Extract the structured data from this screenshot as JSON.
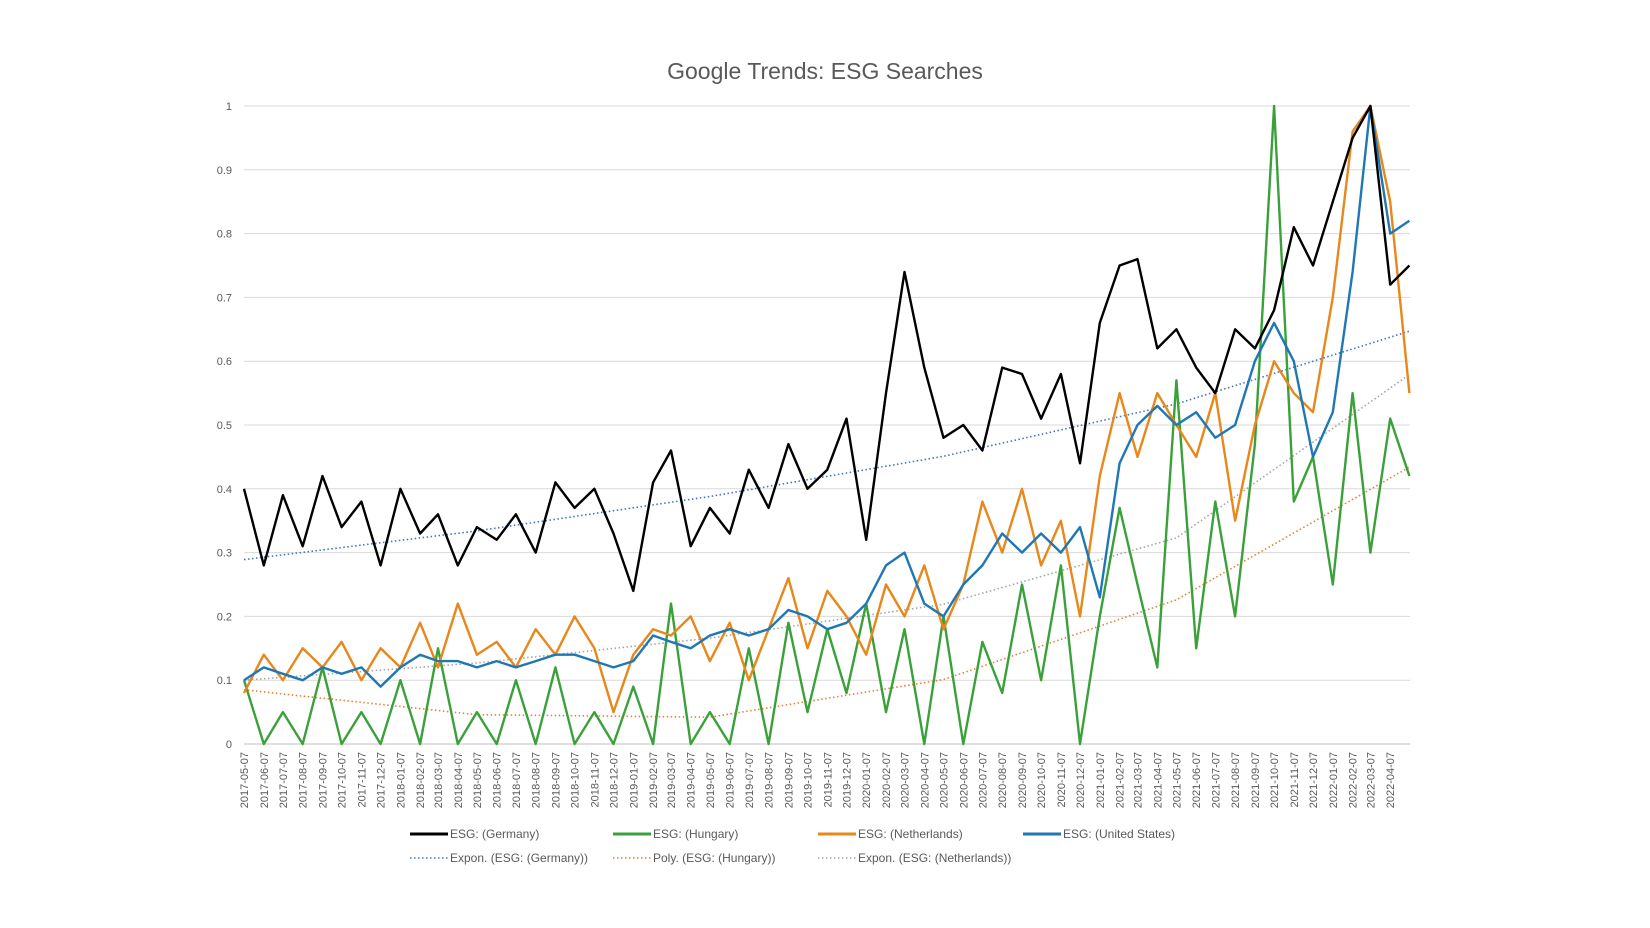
{
  "chart_data": {
    "type": "line",
    "title": "Google Trends: ESG Searches",
    "xlabel": "",
    "ylabel": "",
    "ylim": [
      0,
      1
    ],
    "yticks": [
      "0",
      "0.1",
      "0.2",
      "0.3",
      "0.4",
      "0.5",
      "0.6",
      "0.7",
      "0.8",
      "0.9",
      "1"
    ],
    "grid": true,
    "legend_position": "bottom",
    "x_start": "2017-05-07",
    "x_end": "2022-05-08",
    "x_tick_labels": [
      "2017-05-07",
      "2017-06-07",
      "2017-07-07",
      "2017-08-07",
      "2017-09-07",
      "2017-10-07",
      "2017-11-07",
      "2017-12-07",
      "2018-01-07",
      "2018-02-07",
      "2018-03-07",
      "2018-04-07",
      "2018-05-07",
      "2018-06-07",
      "2018-07-07",
      "2018-08-07",
      "2018-09-07",
      "2018-10-07",
      "2018-11-07",
      "2018-12-07",
      "2019-01-07",
      "2019-02-07",
      "2019-03-07",
      "2019-04-07",
      "2019-05-07",
      "2019-06-07",
      "2019-07-07",
      "2019-08-07",
      "2019-09-07",
      "2019-10-07",
      "2019-11-07",
      "2019-12-07",
      "2020-01-07",
      "2020-02-07",
      "2020-03-07",
      "2020-04-07",
      "2020-05-07",
      "2020-06-07",
      "2020-07-07",
      "2020-08-07",
      "2020-09-07",
      "2020-10-07",
      "2020-11-07",
      "2020-12-07",
      "2021-01-07",
      "2021-02-07",
      "2021-03-07",
      "2021-04-07",
      "2021-05-07",
      "2021-06-07",
      "2021-07-07",
      "2021-08-07",
      "2021-09-07",
      "2021-10-07",
      "2021-11-07",
      "2021-12-07",
      "2022-01-07",
      "2022-02-07",
      "2022-03-07",
      "2022-04-07"
    ],
    "series": [
      {
        "name": "ESG: (Germany)",
        "color": "#000000",
        "style": "solid",
        "x": [
          "2017-05-07",
          "2017-06-07",
          "2017-07-07",
          "2017-08-07",
          "2017-09-07",
          "2017-10-07",
          "2017-11-07",
          "2017-12-07",
          "2018-01-07",
          "2018-02-07",
          "2018-03-07",
          "2018-04-07",
          "2018-05-07",
          "2018-06-07",
          "2018-07-07",
          "2018-08-07",
          "2018-09-07",
          "2018-10-07",
          "2018-11-07",
          "2018-12-07",
          "2019-01-07",
          "2019-02-07",
          "2019-03-07",
          "2019-04-07",
          "2019-05-07",
          "2019-06-07",
          "2019-07-07",
          "2019-08-07",
          "2019-09-07",
          "2019-10-07",
          "2019-11-07",
          "2019-12-07",
          "2020-01-07",
          "2020-02-07",
          "2020-03-07",
          "2020-04-07",
          "2020-05-07",
          "2020-06-07",
          "2020-07-07",
          "2020-08-07",
          "2020-09-07",
          "2020-10-07",
          "2020-11-07",
          "2020-12-07",
          "2021-01-07",
          "2021-02-07",
          "2021-03-07",
          "2021-04-07",
          "2021-05-07",
          "2021-06-07",
          "2021-07-07",
          "2021-08-07",
          "2021-09-07",
          "2021-10-07",
          "2021-11-07",
          "2021-12-07",
          "2022-01-07",
          "2022-02-07",
          "2022-03-07",
          "2022-04-07",
          "2022-05-07"
        ],
        "values": [
          0.4,
          0.28,
          0.39,
          0.31,
          0.42,
          0.34,
          0.38,
          0.28,
          0.4,
          0.33,
          0.36,
          0.28,
          0.34,
          0.32,
          0.36,
          0.3,
          0.41,
          0.37,
          0.4,
          0.33,
          0.24,
          0.41,
          0.46,
          0.31,
          0.37,
          0.33,
          0.43,
          0.37,
          0.47,
          0.4,
          0.43,
          0.51,
          0.32,
          0.55,
          0.74,
          0.59,
          0.48,
          0.5,
          0.46,
          0.59,
          0.58,
          0.51,
          0.58,
          0.44,
          0.66,
          0.75,
          0.76,
          0.62,
          0.65,
          0.59,
          0.55,
          0.65,
          0.62,
          0.68,
          0.81,
          0.75,
          0.85,
          0.95,
          1.0,
          0.72,
          0.75
        ]
      },
      {
        "name": "ESG: (Hungary)",
        "color": "#3aa13a",
        "style": "solid",
        "x": [
          "2017-05-07",
          "2017-06-07",
          "2017-07-07",
          "2017-08-07",
          "2017-09-07",
          "2017-10-07",
          "2017-11-07",
          "2017-12-07",
          "2018-01-07",
          "2018-02-07",
          "2018-03-07",
          "2018-04-07",
          "2018-05-07",
          "2018-06-07",
          "2018-07-07",
          "2018-08-07",
          "2018-09-07",
          "2018-10-07",
          "2018-11-07",
          "2018-12-07",
          "2019-01-07",
          "2019-02-07",
          "2019-03-07",
          "2019-04-07",
          "2019-05-07",
          "2019-06-07",
          "2019-07-07",
          "2019-08-07",
          "2019-09-07",
          "2019-10-07",
          "2019-11-07",
          "2019-12-07",
          "2020-01-07",
          "2020-02-07",
          "2020-03-07",
          "2020-04-07",
          "2020-05-07",
          "2020-06-07",
          "2020-07-07",
          "2020-08-07",
          "2020-09-07",
          "2020-10-07",
          "2020-11-07",
          "2020-12-07",
          "2021-01-07",
          "2021-02-07",
          "2021-03-07",
          "2021-04-07",
          "2021-05-07",
          "2021-06-07",
          "2021-07-07",
          "2021-08-07",
          "2021-09-07",
          "2021-10-07",
          "2021-11-07",
          "2021-12-07",
          "2022-01-07",
          "2022-02-07",
          "2022-03-07",
          "2022-04-07",
          "2022-05-07"
        ],
        "values": [
          0.1,
          0.0,
          0.05,
          0.0,
          0.12,
          0.0,
          0.05,
          0.0,
          0.1,
          0.0,
          0.15,
          0.0,
          0.05,
          0.0,
          0.1,
          0.0,
          0.12,
          0.0,
          0.05,
          0.0,
          0.09,
          0.0,
          0.22,
          0.0,
          0.05,
          0.0,
          0.15,
          0.0,
          0.19,
          0.05,
          0.18,
          0.08,
          0.22,
          0.05,
          0.18,
          0.0,
          0.2,
          0.0,
          0.16,
          0.08,
          0.25,
          0.1,
          0.28,
          0.0,
          0.2,
          0.37,
          0.25,
          0.12,
          0.57,
          0.15,
          0.38,
          0.2,
          0.47,
          1.0,
          0.38,
          0.45,
          0.25,
          0.55,
          0.3,
          0.51,
          0.42
        ]
      },
      {
        "name": "ESG: (Netherlands)",
        "color": "#e8871a",
        "style": "solid",
        "x": [
          "2017-05-07",
          "2017-06-07",
          "2017-07-07",
          "2017-08-07",
          "2017-09-07",
          "2017-10-07",
          "2017-11-07",
          "2017-12-07",
          "2018-01-07",
          "2018-02-07",
          "2018-03-07",
          "2018-04-07",
          "2018-05-07",
          "2018-06-07",
          "2018-07-07",
          "2018-08-07",
          "2018-09-07",
          "2018-10-07",
          "2018-11-07",
          "2018-12-07",
          "2019-01-07",
          "2019-02-07",
          "2019-03-07",
          "2019-04-07",
          "2019-05-07",
          "2019-06-07",
          "2019-07-07",
          "2019-08-07",
          "2019-09-07",
          "2019-10-07",
          "2019-11-07",
          "2019-12-07",
          "2020-01-07",
          "2020-02-07",
          "2020-03-07",
          "2020-04-07",
          "2020-05-07",
          "2020-06-07",
          "2020-07-07",
          "2020-08-07",
          "2020-09-07",
          "2020-10-07",
          "2020-11-07",
          "2020-12-07",
          "2021-01-07",
          "2021-02-07",
          "2021-03-07",
          "2021-04-07",
          "2021-05-07",
          "2021-06-07",
          "2021-07-07",
          "2021-08-07",
          "2021-09-07",
          "2021-10-07",
          "2021-11-07",
          "2021-12-07",
          "2022-01-07",
          "2022-02-07",
          "2022-03-07",
          "2022-04-07",
          "2022-05-07"
        ],
        "values": [
          0.08,
          0.14,
          0.1,
          0.15,
          0.12,
          0.16,
          0.1,
          0.15,
          0.12,
          0.19,
          0.12,
          0.22,
          0.14,
          0.16,
          0.12,
          0.18,
          0.14,
          0.2,
          0.15,
          0.05,
          0.14,
          0.18,
          0.17,
          0.2,
          0.13,
          0.19,
          0.1,
          0.18,
          0.26,
          0.15,
          0.24,
          0.2,
          0.14,
          0.25,
          0.2,
          0.28,
          0.18,
          0.25,
          0.38,
          0.3,
          0.4,
          0.28,
          0.35,
          0.2,
          0.42,
          0.55,
          0.45,
          0.55,
          0.5,
          0.45,
          0.55,
          0.35,
          0.5,
          0.6,
          0.55,
          0.52,
          0.7,
          0.96,
          1.0,
          0.85,
          0.55
        ]
      },
      {
        "name": "ESG: (United States)",
        "color": "#1f77b4",
        "style": "solid",
        "x": [
          "2017-05-07",
          "2017-06-07",
          "2017-07-07",
          "2017-08-07",
          "2017-09-07",
          "2017-10-07",
          "2017-11-07",
          "2017-12-07",
          "2018-01-07",
          "2018-02-07",
          "2018-03-07",
          "2018-04-07",
          "2018-05-07",
          "2018-06-07",
          "2018-07-07",
          "2018-08-07",
          "2018-09-07",
          "2018-10-07",
          "2018-11-07",
          "2018-12-07",
          "2019-01-07",
          "2019-02-07",
          "2019-03-07",
          "2019-04-07",
          "2019-05-07",
          "2019-06-07",
          "2019-07-07",
          "2019-08-07",
          "2019-09-07",
          "2019-10-07",
          "2019-11-07",
          "2019-12-07",
          "2020-01-07",
          "2020-02-07",
          "2020-03-07",
          "2020-04-07",
          "2020-05-07",
          "2020-06-07",
          "2020-07-07",
          "2020-08-07",
          "2020-09-07",
          "2020-10-07",
          "2020-11-07",
          "2020-12-07",
          "2021-01-07",
          "2021-02-07",
          "2021-03-07",
          "2021-04-07",
          "2021-05-07",
          "2021-06-07",
          "2021-07-07",
          "2021-08-07",
          "2021-09-07",
          "2021-10-07",
          "2021-11-07",
          "2021-12-07",
          "2022-01-07",
          "2022-02-07",
          "2022-03-07",
          "2022-04-07",
          "2022-05-07"
        ],
        "values": [
          0.1,
          0.12,
          0.11,
          0.1,
          0.12,
          0.11,
          0.12,
          0.09,
          0.12,
          0.14,
          0.13,
          0.13,
          0.12,
          0.13,
          0.12,
          0.13,
          0.14,
          0.14,
          0.13,
          0.12,
          0.13,
          0.17,
          0.16,
          0.15,
          0.17,
          0.18,
          0.17,
          0.18,
          0.21,
          0.2,
          0.18,
          0.19,
          0.22,
          0.28,
          0.3,
          0.22,
          0.2,
          0.25,
          0.28,
          0.33,
          0.3,
          0.33,
          0.3,
          0.34,
          0.23,
          0.44,
          0.5,
          0.53,
          0.5,
          0.52,
          0.48,
          0.5,
          0.6,
          0.66,
          0.6,
          0.45,
          0.52,
          0.74,
          1.0,
          0.8,
          0.82
        ]
      },
      {
        "name": "Expon. (ESG: (Germany))",
        "color": "#4472c4",
        "style": "dotted",
        "x": [
          "2017-05-07",
          "2018-05-07",
          "2019-05-07",
          "2020-05-07",
          "2021-05-07",
          "2022-05-07"
        ],
        "values": [
          0.289,
          0.334,
          0.388,
          0.451,
          0.533,
          0.647
        ]
      },
      {
        "name": "Poly. (ESG: (Hungary))",
        "color": "#ed7d31",
        "style": "dotted",
        "x": [
          "2017-05-07",
          "2018-05-07",
          "2019-05-07",
          "2020-05-07",
          "2021-05-07",
          "2022-05-07"
        ],
        "values": [
          0.085,
          0.046,
          0.042,
          0.101,
          0.226,
          0.434
        ]
      },
      {
        "name": "Expon. (ESG: (Netherlands))",
        "color": "#a5a5a5",
        "style": "dotted",
        "x": [
          "2017-05-07",
          "2018-05-07",
          "2019-05-07",
          "2020-05-07",
          "2021-05-07",
          "2022-05-07"
        ],
        "values": [
          0.1,
          0.127,
          0.166,
          0.219,
          0.323,
          0.579
        ]
      }
    ]
  }
}
